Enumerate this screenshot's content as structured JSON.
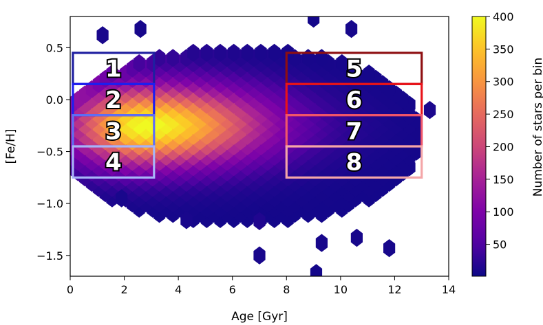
{
  "chart_data": {
    "type": "heatmap",
    "subtype": "hexbin",
    "colormap": "plasma",
    "xlabel": "Age [Gyr]",
    "ylabel": "[Fe/H]",
    "xlim": [
      0,
      14
    ],
    "ylim": [
      -1.7,
      0.8
    ],
    "xticks": [
      0,
      2,
      4,
      6,
      8,
      10,
      12,
      14
    ],
    "xtick_labels": [
      "0",
      "2",
      "4",
      "6",
      "8",
      "10",
      "12",
      "14"
    ],
    "yticks": [
      0.5,
      0.0,
      -0.5,
      -1.0,
      -1.5
    ],
    "ytick_labels": [
      "0.5",
      "0.0",
      "−0.5",
      "−1.0",
      "−1.5"
    ],
    "colorbar": {
      "label": "Number of stars per bin",
      "range": [
        1,
        400
      ],
      "ticks": [
        50,
        100,
        150,
        200,
        250,
        300,
        350,
        400
      ],
      "tick_labels": [
        "50",
        "100",
        "150",
        "200",
        "250",
        "300",
        "350",
        "400"
      ]
    },
    "density": {
      "peak_age": 2.8,
      "peak_feh": -0.22,
      "peak_count": 400,
      "bulk_age_range": [
        0.3,
        12.5
      ],
      "bulk_feh_range": [
        -1.2,
        0.4
      ]
    },
    "sparse_bins": [
      {
        "age": 1.2,
        "feh": 0.62,
        "count": 10
      },
      {
        "age": 2.6,
        "feh": 0.68,
        "count": 8
      },
      {
        "age": 9.0,
        "feh": 0.78,
        "count": 6
      },
      {
        "age": 10.4,
        "feh": 0.68,
        "count": 8
      },
      {
        "age": 13.3,
        "feh": -0.1,
        "count": 12
      },
      {
        "age": 4.3,
        "feh": -1.16,
        "count": 10
      },
      {
        "age": 9.3,
        "feh": -1.38,
        "count": 8
      },
      {
        "age": 7.0,
        "feh": -1.5,
        "count": 10
      },
      {
        "age": 10.6,
        "feh": -1.33,
        "count": 8
      },
      {
        "age": 11.8,
        "feh": -1.43,
        "count": 8
      },
      {
        "age": 9.1,
        "feh": -1.67,
        "count": 6
      },
      {
        "age": 1.9,
        "feh": -0.95,
        "count": 10
      },
      {
        "age": 7.0,
        "feh": -1.17,
        "count": 15
      }
    ],
    "boxes": [
      {
        "label": "1",
        "age": [
          0.1,
          3.1
        ],
        "feh": [
          0.15,
          0.45
        ],
        "color": "#1f1fa0"
      },
      {
        "label": "2",
        "age": [
          0.1,
          3.1
        ],
        "feh": [
          -0.15,
          0.15
        ],
        "color": "#1e1ef0"
      },
      {
        "label": "3",
        "age": [
          0.1,
          3.1
        ],
        "feh": [
          -0.45,
          -0.15
        ],
        "color": "#5f6ff5"
      },
      {
        "label": "4",
        "age": [
          0.1,
          3.1
        ],
        "feh": [
          -0.75,
          -0.45
        ],
        "color": "#a8b4f8"
      },
      {
        "label": "5",
        "age": [
          8.0,
          13.0
        ],
        "feh": [
          0.15,
          0.45
        ],
        "color": "#8e0f12"
      },
      {
        "label": "6",
        "age": [
          8.0,
          13.0
        ],
        "feh": [
          -0.15,
          0.15
        ],
        "color": "#e8131a"
      },
      {
        "label": "7",
        "age": [
          8.0,
          13.0
        ],
        "feh": [
          -0.45,
          -0.15
        ],
        "color": "#f0566b"
      },
      {
        "label": "8",
        "age": [
          8.0,
          13.0
        ],
        "feh": [
          -0.75,
          -0.45
        ],
        "color": "#f4a6a8"
      }
    ]
  }
}
